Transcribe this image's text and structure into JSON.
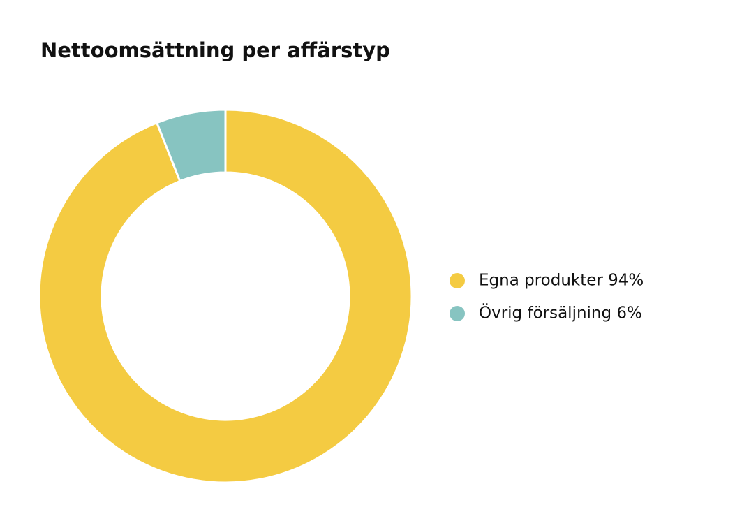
{
  "chart_data": {
    "type": "donut",
    "title": "Nettoomsättning per affärstyp",
    "categories": [
      "Egna produkter 94%",
      "Övrig försäljning 6%"
    ],
    "values": [
      94,
      6
    ],
    "colors": [
      "#f4cb42",
      "#87c4c1"
    ]
  }
}
